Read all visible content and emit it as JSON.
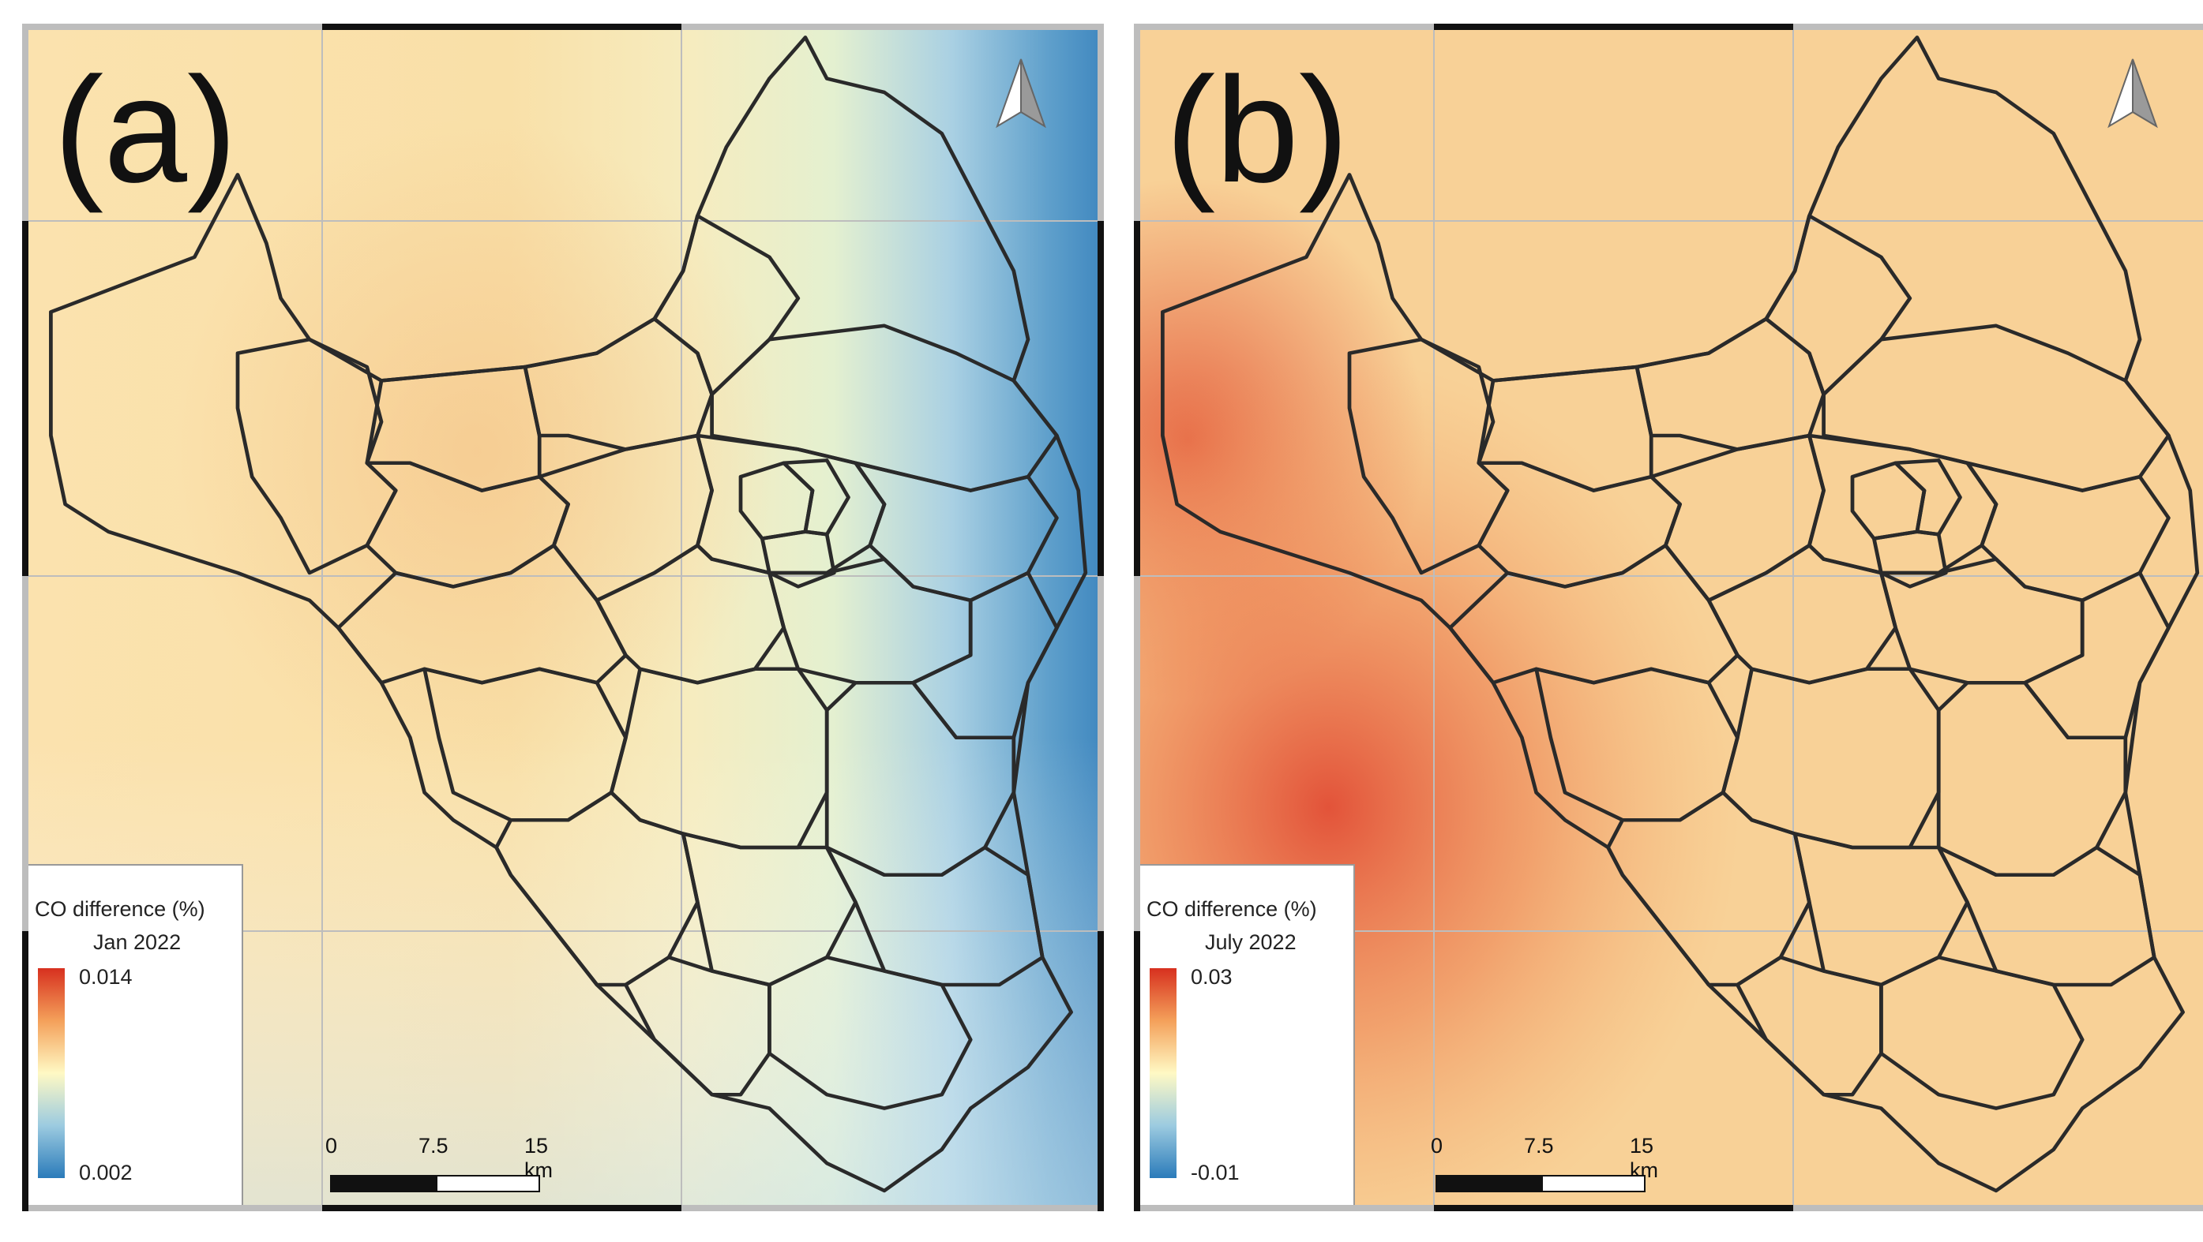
{
  "panels": [
    {
      "id": "a",
      "label": "(a)",
      "legend": {
        "title": "CO difference (%)",
        "period": "Jan 2022",
        "max": "0.014",
        "min": "0.002"
      },
      "scale": {
        "ticks": [
          "0",
          "7.5",
          "15 km"
        ]
      },
      "colors": {
        "ramp_top": "#d7301f",
        "ramp_mid": "#fff9c4",
        "ramp_bottom": "#2b7bba"
      }
    },
    {
      "id": "b",
      "label": "(b)",
      "legend": {
        "title": "CO difference (%)",
        "period": "July 2022",
        "max": "0.03",
        "min": "-0.01"
      },
      "scale": {
        "ticks": [
          "0",
          "7.5",
          "15 km"
        ]
      },
      "colors": {
        "ramp_top": "#d7301f",
        "ramp_mid": "#fff9c4",
        "ramp_bottom": "#2b7bba"
      }
    }
  ],
  "icons": {
    "north_arrow": "north-arrow-icon"
  }
}
